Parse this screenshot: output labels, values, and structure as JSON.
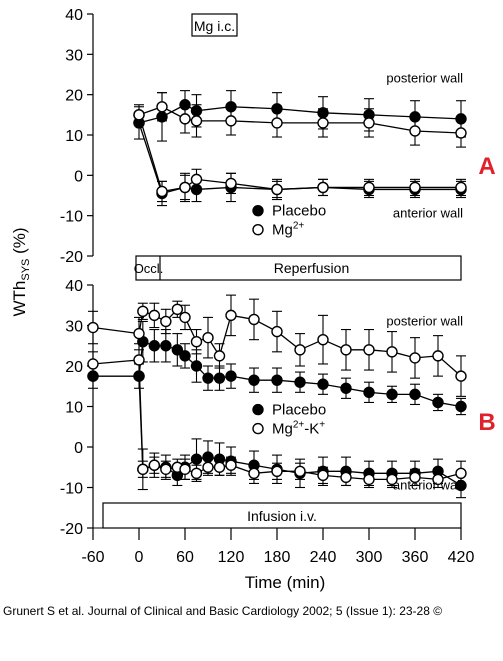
{
  "chart_data": [
    {
      "type": "line",
      "panel_label": "A",
      "box_label": "Mg i.c.",
      "ylim": [
        -20,
        40
      ],
      "yticks": [
        -20,
        -10,
        0,
        10,
        20,
        30,
        40
      ],
      "xlim": [
        -60,
        420
      ],
      "wall_labels": {
        "upper": "posterior wall",
        "lower": "anterior wall"
      },
      "legend": [
        {
          "name": "Placebo",
          "marker": "filled"
        },
        {
          "name": "Mg",
          "sup": "2+",
          "marker": "open"
        }
      ],
      "series": [
        {
          "name": "Placebo",
          "wall": "posterior",
          "marker": "filled",
          "x": [
            0,
            30,
            60,
            75,
            120,
            180,
            240,
            300,
            360,
            420
          ],
          "y": [
            13,
            14.5,
            17.5,
            16,
            17,
            16.5,
            15.5,
            15,
            14.5,
            14
          ],
          "err": [
            4,
            6,
            3.5,
            4,
            4,
            4,
            4,
            4,
            4,
            4.5
          ]
        },
        {
          "name": "Mg2+",
          "wall": "posterior",
          "marker": "open",
          "x": [
            0,
            30,
            60,
            75,
            120,
            180,
            240,
            300,
            360,
            420
          ],
          "y": [
            15,
            17,
            14,
            13.5,
            13.5,
            13,
            13,
            13,
            11,
            10.5
          ],
          "err": [
            2.5,
            3.5,
            3.5,
            4,
            3.5,
            3.5,
            3.5,
            3.5,
            3.5,
            3.5
          ]
        },
        {
          "name": "Placebo",
          "wall": "anterior",
          "marker": "filled",
          "x": [
            0,
            30,
            60,
            75,
            120,
            180,
            240,
            300,
            360,
            420
          ],
          "y": [
            13,
            -4.5,
            -3,
            -3.5,
            -3,
            -3.5,
            -3,
            -3.5,
            -3.5,
            -3.5
          ],
          "err": [
            0,
            3,
            3.5,
            3,
            3.5,
            2.5,
            2,
            2,
            2,
            2
          ]
        },
        {
          "name": "Mg2+",
          "wall": "anterior",
          "marker": "open",
          "x": [
            0,
            30,
            60,
            75,
            120,
            180,
            240,
            300,
            360,
            420
          ],
          "y": [
            15,
            -4,
            -3,
            -1,
            -2,
            -3.5,
            -3,
            -3,
            -3,
            -3
          ],
          "err": [
            0,
            2.5,
            3,
            2.5,
            2.5,
            2,
            2,
            2,
            2,
            2
          ]
        }
      ]
    },
    {
      "type": "line",
      "panel_label": "B",
      "ylim": [
        -20,
        40
      ],
      "yticks": [
        -20,
        -10,
        0,
        10,
        20,
        30,
        40
      ],
      "xlim": [
        -60,
        420
      ],
      "x_ticks": [
        -60,
        0,
        60,
        120,
        180,
        240,
        300,
        360,
        420
      ],
      "xlabel": "Time (min)",
      "wall_labels": {
        "upper": "posterior wall",
        "lower": "anterior wall"
      },
      "legend": [
        {
          "name": "Placebo",
          "marker": "filled"
        },
        {
          "name": "Mg",
          "sup": "2+",
          "suffix": "-K",
          "sup2": "+",
          "marker": "open"
        }
      ],
      "series": [
        {
          "name": "Placebo",
          "wall": "posterior",
          "marker": "filled",
          "x": [
            -60,
            0,
            5,
            20,
            35,
            50,
            60,
            75,
            90,
            105,
            120,
            150,
            180,
            210,
            240,
            270,
            300,
            330,
            360,
            390,
            420
          ],
          "y": [
            17.5,
            17.5,
            26,
            25,
            25,
            24,
            22.5,
            20,
            17,
            17,
            17.5,
            16.5,
            16.5,
            16,
            15.5,
            14.5,
            13.5,
            13,
            13,
            11,
            10
          ],
          "err": [
            3,
            3,
            5,
            4,
            4,
            4,
            3,
            4,
            3,
            3,
            3,
            3,
            3,
            2.5,
            2.5,
            2.5,
            2.5,
            2,
            2.5,
            2,
            2
          ]
        },
        {
          "name": "Mg2+-K+",
          "wall": "posterior",
          "marker": "open",
          "x": [
            -60,
            0,
            5,
            20,
            35,
            50,
            60,
            75,
            90,
            105,
            120,
            150,
            180,
            210,
            240,
            270,
            300,
            330,
            360,
            390,
            420
          ],
          "y": [
            29.5,
            28,
            33.5,
            32.5,
            31,
            34,
            32,
            26,
            27,
            22.5,
            32.5,
            31.5,
            28.5,
            24,
            26.5,
            24,
            24,
            23.5,
            22,
            22.5,
            17.5
          ],
          "err": [
            4,
            4,
            2,
            3,
            3,
            2,
            3,
            3,
            5,
            3,
            5,
            5,
            5,
            4,
            6,
            5,
            5,
            5,
            5,
            5,
            5
          ]
        },
        {
          "name": "Placebo",
          "wall": "anterior",
          "marker": "filled",
          "x": [
            -60,
            0,
            5,
            20,
            35,
            50,
            60,
            75,
            90,
            105,
            120,
            150,
            180,
            210,
            240,
            270,
            300,
            330,
            360,
            390,
            420
          ],
          "y": [
            17.5,
            17.5,
            -5.5,
            -4.5,
            -5,
            -7,
            -5,
            -3,
            -2.5,
            -3,
            -3.5,
            -4.5,
            -5.5,
            -6.5,
            -6,
            -6,
            -6.5,
            -6.5,
            -6.5,
            -6,
            -9.5
          ],
          "err": [
            0,
            0,
            5,
            3,
            3,
            2.5,
            3,
            5,
            4,
            4,
            3.5,
            3.5,
            3.5,
            3.5,
            3.5,
            3.5,
            3,
            3,
            3,
            3,
            3
          ]
        },
        {
          "name": "Mg2+-K+",
          "wall": "anterior",
          "marker": "open",
          "x": [
            -60,
            0,
            5,
            20,
            35,
            50,
            60,
            75,
            90,
            105,
            120,
            150,
            180,
            210,
            240,
            270,
            300,
            330,
            360,
            390,
            420
          ],
          "y": [
            20.5,
            21.5,
            -5.5,
            -4.5,
            -5.5,
            -5,
            -5.5,
            -6.5,
            -5,
            -5,
            -4.5,
            -6.5,
            -6,
            -6,
            -7,
            -7.5,
            -8,
            -8,
            -7.5,
            -8,
            -6.5
          ],
          "err": [
            3,
            4,
            2,
            2,
            2,
            2,
            2.5,
            2,
            2,
            2,
            2,
            2.5,
            2,
            2,
            2,
            2,
            2,
            2,
            2,
            2,
            3
          ]
        }
      ]
    }
  ],
  "ylabel": {
    "main": "WTh",
    "sub": "SYS",
    "unit": " (%)"
  },
  "phase_bar": {
    "occl_label": "Occl.",
    "reperf_label": "Reperfusion"
  },
  "infusion_bar_label": "Infusion i.v.",
  "citation": "Grunert S et al. Journal of Clinical and Basic Cardiology 2002; 5 (Issue 1): 23-28 ©",
  "colors": {
    "ink": "#000000",
    "accent": "#e0202a",
    "background": "#ffffff"
  }
}
